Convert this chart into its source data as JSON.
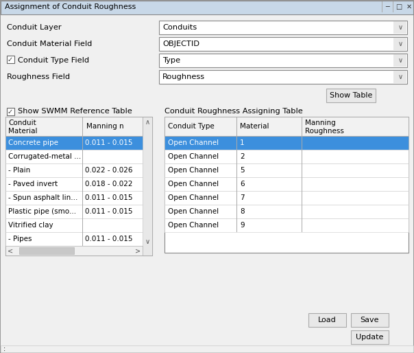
{
  "title": "Assignment of Conduit Roughness",
  "bg_color": "#f0f0f0",
  "dialog_bg": "#f0f0f0",
  "titlebar_bg": "#c8d8e8",
  "white": "#ffffff",
  "blue_sel": "#3c8fdd",
  "fields": [
    {
      "label": "Conduit Layer",
      "value": "Conduits"
    },
    {
      "label": "Conduit Material Field",
      "value": "OBJECTID"
    },
    {
      "label": "Conduit Type Field",
      "value": "Type",
      "checkbox": true
    },
    {
      "label": "Roughness Field",
      "value": "Roughness"
    }
  ],
  "show_swmm_label": "Show SWMM Reference Table",
  "assign_table_title": "Conduit Roughness Assigning Table",
  "ref_table_rows": [
    [
      "Concrete pipe",
      "0.011 - 0.015",
      false,
      true
    ],
    [
      "Corrugated-metal ...",
      "",
      false,
      false
    ],
    [
      "- Plain",
      "0.022 - 0.026",
      false,
      false
    ],
    [
      "- Paved invert",
      "0.018 - 0.022",
      false,
      false
    ],
    [
      "- Spun asphalt lin...",
      "0.011 - 0.015",
      false,
      false
    ],
    [
      "Plastic pipe (smo...",
      "0.011 - 0.015",
      false,
      false
    ],
    [
      "Vitrified clay",
      "",
      false,
      false
    ],
    [
      "- Pipes",
      "0.011 - 0.015",
      false,
      false
    ]
  ],
  "assign_table_rows": [
    [
      "Open Channel",
      "1",
      "",
      true
    ],
    [
      "Open Channel",
      "2",
      "",
      false
    ],
    [
      "Open Channel",
      "5",
      "",
      false
    ],
    [
      "Open Channel",
      "6",
      "",
      false
    ],
    [
      "Open Channel",
      "7",
      "",
      false
    ],
    [
      "Open Channel",
      "8",
      "",
      false
    ],
    [
      "Open Channel",
      "9",
      "",
      false
    ]
  ],
  "show_table_btn": "Show Table",
  "btn_load": "Load",
  "btn_save": "Save",
  "btn_update": "Update"
}
